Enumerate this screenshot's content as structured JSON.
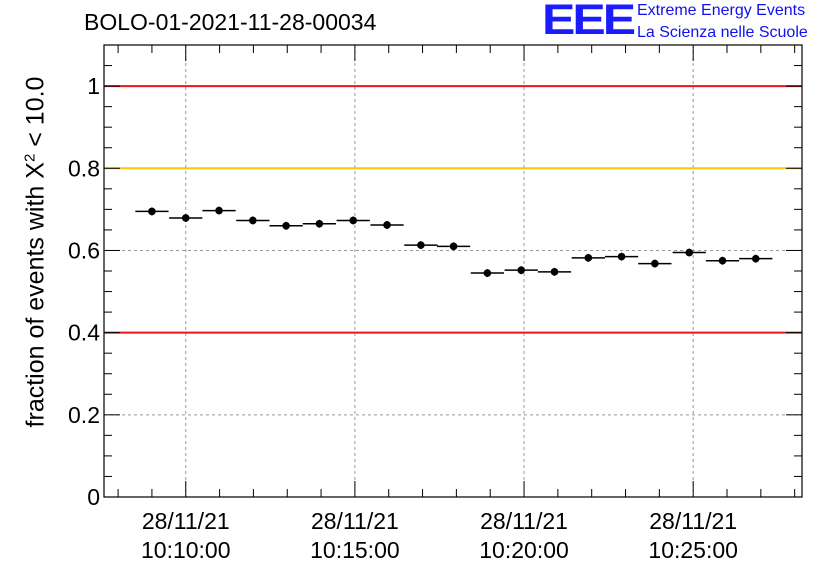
{
  "header": {
    "title": "BOLO-01-2021-11-28-00034",
    "logo_mark": "EEE",
    "logo_line1": "Extreme Energy Events",
    "logo_line2": "La Scienza nelle Scuole"
  },
  "chart_data": {
    "type": "scatter",
    "title": "BOLO-01-2021-11-28-00034",
    "ylabel_prefix": "fraction of events with X",
    "ylabel_sup": "2",
    "ylabel_suffix": " < 10.0",
    "ylim": [
      0,
      1.1
    ],
    "yticks": [
      0,
      0.2,
      0.4,
      0.6,
      0.8,
      1
    ],
    "ytick_labels": [
      "0",
      "0.2",
      "0.4",
      "0.6",
      "0.8",
      "1"
    ],
    "xlim_seconds": [
      -145,
      1093
    ],
    "xticks": [
      {
        "t": 0,
        "date": "28/11/21",
        "time": "10:10:00"
      },
      {
        "t": 300,
        "date": "28/11/21",
        "time": "10:15:00"
      },
      {
        "t": 600,
        "date": "28/11/21",
        "time": "10:20:00"
      },
      {
        "t": 900,
        "date": "28/11/21",
        "time": "10:25:00"
      }
    ],
    "bin_width_seconds": 59,
    "points": [
      {
        "t": -60,
        "y": 0.695
      },
      {
        "t": 0,
        "y": 0.679
      },
      {
        "t": 59,
        "y": 0.697
      },
      {
        "t": 119,
        "y": 0.673
      },
      {
        "t": 178,
        "y": 0.66
      },
      {
        "t": 237,
        "y": 0.665
      },
      {
        "t": 297,
        "y": 0.673
      },
      {
        "t": 357,
        "y": 0.662
      },
      {
        "t": 417,
        "y": 0.613
      },
      {
        "t": 475,
        "y": 0.61
      },
      {
        "t": 535,
        "y": 0.545
      },
      {
        "t": 595,
        "y": 0.552
      },
      {
        "t": 654,
        "y": 0.548
      },
      {
        "t": 714,
        "y": 0.582
      },
      {
        "t": 773,
        "y": 0.585
      },
      {
        "t": 832,
        "y": 0.568
      },
      {
        "t": 893,
        "y": 0.595
      },
      {
        "t": 952,
        "y": 0.575
      },
      {
        "t": 1011,
        "y": 0.58
      }
    ],
    "reference_lines": [
      {
        "y": 1.0,
        "color": "#e8171e"
      },
      {
        "y": 0.8,
        "color": "#ffc20e"
      },
      {
        "y": 0.4,
        "color": "#e8171e"
      }
    ],
    "grid": true
  }
}
